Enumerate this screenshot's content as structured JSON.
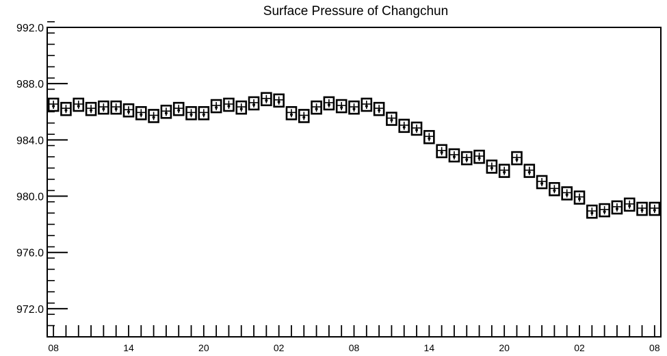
{
  "chart_data": {
    "type": "scatter",
    "title": "Surface Pressure of Changchun",
    "xlabel": "",
    "ylabel": "",
    "ylim": [
      970.0,
      992.0
    ],
    "xlim": [
      -0.5,
      48.5
    ],
    "y_ticks": [
      "972.0",
      "976.0",
      "980.0",
      "984.0",
      "988.0",
      "992.0"
    ],
    "x_ticks": [
      {
        "index": 0,
        "label": "08"
      },
      {
        "index": 6,
        "label": "14"
      },
      {
        "index": 12,
        "label": "20"
      },
      {
        "index": 18,
        "label": "02"
      },
      {
        "index": 24,
        "label": "08"
      },
      {
        "index": 30,
        "label": "14"
      },
      {
        "index": 36,
        "label": "20"
      },
      {
        "index": 42,
        "label": "02"
      },
      {
        "index": 48,
        "label": "08"
      }
    ],
    "x_time_step_hours": 1,
    "grid": false,
    "marker": "boxed-station-glyph",
    "colors": {
      "marker": "#000000",
      "axes": "#000000",
      "background": "#ffffff"
    },
    "series": [
      {
        "values": [
          986.5,
          986.2,
          986.5,
          986.2,
          986.3,
          986.3,
          986.1,
          985.9,
          985.7,
          986.0,
          986.2,
          985.9,
          985.9,
          986.4,
          986.5,
          986.3,
          986.6,
          986.9,
          986.8,
          985.9,
          985.7,
          986.3,
          986.6,
          986.4,
          986.3,
          986.5,
          986.2,
          985.5,
          985.0,
          984.8,
          984.2,
          983.2,
          982.9,
          982.7,
          982.8,
          982.1,
          981.8,
          982.7,
          981.8,
          981.0,
          980.5,
          980.2,
          979.9,
          978.9,
          979.0,
          979.2,
          979.4,
          979.1,
          979.1
        ]
      }
    ]
  }
}
